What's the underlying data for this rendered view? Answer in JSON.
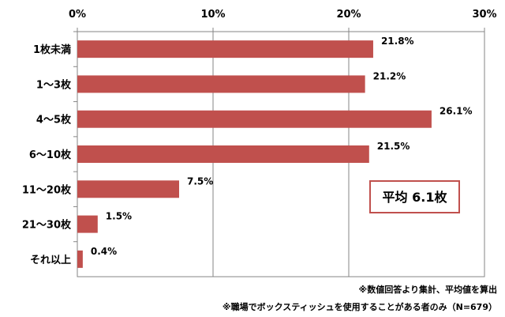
{
  "chart_data": {
    "type": "bar",
    "orientation": "horizontal",
    "categories": [
      "1枚未満",
      "1～3枚",
      "4～5枚",
      "6～10枚",
      "11～20枚",
      "21～30枚",
      "それ以上"
    ],
    "values": [
      21.8,
      21.2,
      26.1,
      21.5,
      7.5,
      1.5,
      0.4
    ],
    "value_labels": [
      "21.8%",
      "21.2%",
      "26.1%",
      "21.5%",
      "7.5%",
      "1.5%",
      "0.4%"
    ],
    "xlim": [
      0,
      30
    ],
    "x_ticks": [
      0,
      10,
      20,
      30
    ],
    "x_tick_labels": [
      "0%",
      "10%",
      "20%",
      "30%"
    ],
    "axis_position": "top",
    "grid": true,
    "bar_color": "#c0504d",
    "annotation": "平均 6.1枚",
    "annotation_color": "#c0504d"
  },
  "notes": [
    "※数値回答より集計、平均値を算出",
    "※職場でボックスティッシュを使用することがある者のみ（N=679）"
  ]
}
